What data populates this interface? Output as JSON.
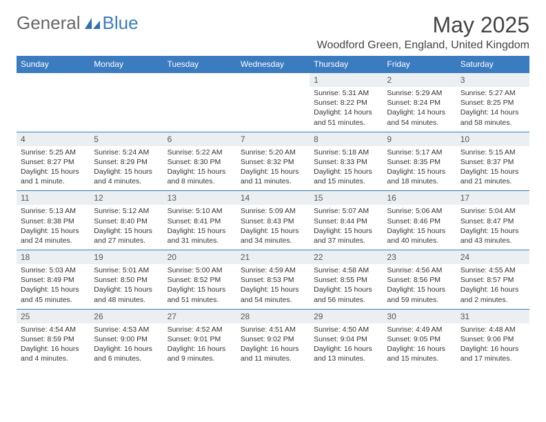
{
  "brand": {
    "part1": "General",
    "part2": "Blue"
  },
  "title": "May 2025",
  "location": "Woodford Green, England, United Kingdom",
  "colors": {
    "header_bg": "#3b7bbf",
    "header_text": "#ffffff",
    "daynum_bg": "#eceff1",
    "border": "#3b7bbf",
    "text": "#333333",
    "brand_gray": "#666666",
    "brand_blue": "#3b7bbf"
  },
  "day_headers": [
    "Sunday",
    "Monday",
    "Tuesday",
    "Wednesday",
    "Thursday",
    "Friday",
    "Saturday"
  ],
  "weeks": [
    [
      {
        "n": "",
        "sr": "",
        "ss": "",
        "dl": ""
      },
      {
        "n": "",
        "sr": "",
        "ss": "",
        "dl": ""
      },
      {
        "n": "",
        "sr": "",
        "ss": "",
        "dl": ""
      },
      {
        "n": "",
        "sr": "",
        "ss": "",
        "dl": ""
      },
      {
        "n": "1",
        "sr": "Sunrise: 5:31 AM",
        "ss": "Sunset: 8:22 PM",
        "dl": "Daylight: 14 hours and 51 minutes."
      },
      {
        "n": "2",
        "sr": "Sunrise: 5:29 AM",
        "ss": "Sunset: 8:24 PM",
        "dl": "Daylight: 14 hours and 54 minutes."
      },
      {
        "n": "3",
        "sr": "Sunrise: 5:27 AM",
        "ss": "Sunset: 8:25 PM",
        "dl": "Daylight: 14 hours and 58 minutes."
      }
    ],
    [
      {
        "n": "4",
        "sr": "Sunrise: 5:25 AM",
        "ss": "Sunset: 8:27 PM",
        "dl": "Daylight: 15 hours and 1 minute."
      },
      {
        "n": "5",
        "sr": "Sunrise: 5:24 AM",
        "ss": "Sunset: 8:29 PM",
        "dl": "Daylight: 15 hours and 4 minutes."
      },
      {
        "n": "6",
        "sr": "Sunrise: 5:22 AM",
        "ss": "Sunset: 8:30 PM",
        "dl": "Daylight: 15 hours and 8 minutes."
      },
      {
        "n": "7",
        "sr": "Sunrise: 5:20 AM",
        "ss": "Sunset: 8:32 PM",
        "dl": "Daylight: 15 hours and 11 minutes."
      },
      {
        "n": "8",
        "sr": "Sunrise: 5:18 AM",
        "ss": "Sunset: 8:33 PM",
        "dl": "Daylight: 15 hours and 15 minutes."
      },
      {
        "n": "9",
        "sr": "Sunrise: 5:17 AM",
        "ss": "Sunset: 8:35 PM",
        "dl": "Daylight: 15 hours and 18 minutes."
      },
      {
        "n": "10",
        "sr": "Sunrise: 5:15 AM",
        "ss": "Sunset: 8:37 PM",
        "dl": "Daylight: 15 hours and 21 minutes."
      }
    ],
    [
      {
        "n": "11",
        "sr": "Sunrise: 5:13 AM",
        "ss": "Sunset: 8:38 PM",
        "dl": "Daylight: 15 hours and 24 minutes."
      },
      {
        "n": "12",
        "sr": "Sunrise: 5:12 AM",
        "ss": "Sunset: 8:40 PM",
        "dl": "Daylight: 15 hours and 27 minutes."
      },
      {
        "n": "13",
        "sr": "Sunrise: 5:10 AM",
        "ss": "Sunset: 8:41 PM",
        "dl": "Daylight: 15 hours and 31 minutes."
      },
      {
        "n": "14",
        "sr": "Sunrise: 5:09 AM",
        "ss": "Sunset: 8:43 PM",
        "dl": "Daylight: 15 hours and 34 minutes."
      },
      {
        "n": "15",
        "sr": "Sunrise: 5:07 AM",
        "ss": "Sunset: 8:44 PM",
        "dl": "Daylight: 15 hours and 37 minutes."
      },
      {
        "n": "16",
        "sr": "Sunrise: 5:06 AM",
        "ss": "Sunset: 8:46 PM",
        "dl": "Daylight: 15 hours and 40 minutes."
      },
      {
        "n": "17",
        "sr": "Sunrise: 5:04 AM",
        "ss": "Sunset: 8:47 PM",
        "dl": "Daylight: 15 hours and 43 minutes."
      }
    ],
    [
      {
        "n": "18",
        "sr": "Sunrise: 5:03 AM",
        "ss": "Sunset: 8:49 PM",
        "dl": "Daylight: 15 hours and 45 minutes."
      },
      {
        "n": "19",
        "sr": "Sunrise: 5:01 AM",
        "ss": "Sunset: 8:50 PM",
        "dl": "Daylight: 15 hours and 48 minutes."
      },
      {
        "n": "20",
        "sr": "Sunrise: 5:00 AM",
        "ss": "Sunset: 8:52 PM",
        "dl": "Daylight: 15 hours and 51 minutes."
      },
      {
        "n": "21",
        "sr": "Sunrise: 4:59 AM",
        "ss": "Sunset: 8:53 PM",
        "dl": "Daylight: 15 hours and 54 minutes."
      },
      {
        "n": "22",
        "sr": "Sunrise: 4:58 AM",
        "ss": "Sunset: 8:55 PM",
        "dl": "Daylight: 15 hours and 56 minutes."
      },
      {
        "n": "23",
        "sr": "Sunrise: 4:56 AM",
        "ss": "Sunset: 8:56 PM",
        "dl": "Daylight: 15 hours and 59 minutes."
      },
      {
        "n": "24",
        "sr": "Sunrise: 4:55 AM",
        "ss": "Sunset: 8:57 PM",
        "dl": "Daylight: 16 hours and 2 minutes."
      }
    ],
    [
      {
        "n": "25",
        "sr": "Sunrise: 4:54 AM",
        "ss": "Sunset: 8:59 PM",
        "dl": "Daylight: 16 hours and 4 minutes."
      },
      {
        "n": "26",
        "sr": "Sunrise: 4:53 AM",
        "ss": "Sunset: 9:00 PM",
        "dl": "Daylight: 16 hours and 6 minutes."
      },
      {
        "n": "27",
        "sr": "Sunrise: 4:52 AM",
        "ss": "Sunset: 9:01 PM",
        "dl": "Daylight: 16 hours and 9 minutes."
      },
      {
        "n": "28",
        "sr": "Sunrise: 4:51 AM",
        "ss": "Sunset: 9:02 PM",
        "dl": "Daylight: 16 hours and 11 minutes."
      },
      {
        "n": "29",
        "sr": "Sunrise: 4:50 AM",
        "ss": "Sunset: 9:04 PM",
        "dl": "Daylight: 16 hours and 13 minutes."
      },
      {
        "n": "30",
        "sr": "Sunrise: 4:49 AM",
        "ss": "Sunset: 9:05 PM",
        "dl": "Daylight: 16 hours and 15 minutes."
      },
      {
        "n": "31",
        "sr": "Sunrise: 4:48 AM",
        "ss": "Sunset: 9:06 PM",
        "dl": "Daylight: 16 hours and 17 minutes."
      }
    ]
  ]
}
